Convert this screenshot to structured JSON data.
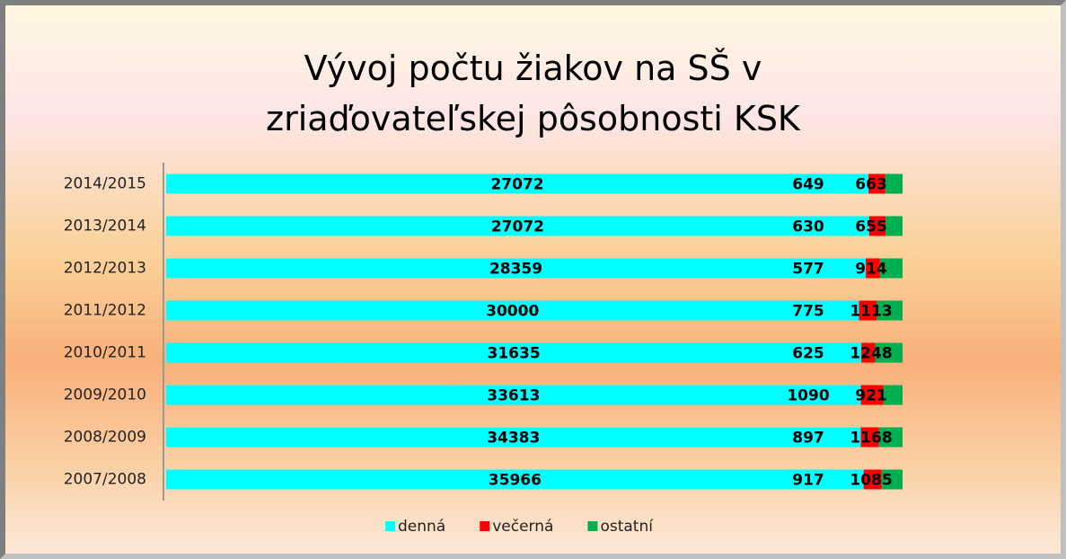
{
  "chart_data": {
    "type": "stacked_bar_100",
    "title": "Vývoj počtu žiakov na SŠ v zriaďovateľskej pôsobnosti KSK",
    "categories": [
      "2014/2015",
      "2013/2014",
      "2012/2013",
      "2011/2012",
      "2010/2011",
      "2009/2010",
      "2008/2009",
      "2007/2008"
    ],
    "series": [
      {
        "name": "denná",
        "color": "#00ffff",
        "values": [
          27072,
          27072,
          28359,
          30000,
          31635,
          33613,
          34383,
          35966
        ]
      },
      {
        "name": "večerná",
        "color": "#ff0000",
        "values": [
          649,
          630,
          577,
          775,
          625,
          1090,
          897,
          917
        ]
      },
      {
        "name": "ostatní",
        "color": "#00b050",
        "values": [
          663,
          655,
          914,
          1113,
          1248,
          921,
          1168,
          1085
        ]
      }
    ],
    "legend": "bottom"
  }
}
